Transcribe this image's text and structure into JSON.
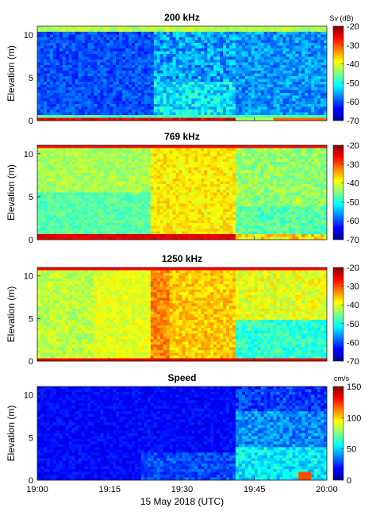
{
  "chart_data": [
    {
      "type": "heatmap",
      "title": "200 kHz",
      "ylabel": "Elevation (m)",
      "ylim": [
        0,
        11
      ],
      "yticks": [
        0,
        5,
        10
      ],
      "colorbar": {
        "label": "Sv (dB)",
        "range": [
          -70,
          -20
        ],
        "ticks": [
          -20,
          -30,
          -40,
          -50,
          -60,
          -70
        ]
      },
      "x": [
        "19:00",
        "19:15",
        "19:30",
        "19:45",
        "20:00"
      ],
      "xlabel_shown": false
    },
    {
      "type": "heatmap",
      "title": "769 kHz",
      "ylabel": "Elevation (m)",
      "ylim": [
        0,
        11
      ],
      "yticks": [
        0,
        5,
        10
      ],
      "colorbar": {
        "label": "",
        "range": [
          -70,
          -20
        ],
        "ticks": [
          -20,
          -30,
          -40,
          -50,
          -60,
          -70
        ]
      },
      "x": [
        "19:00",
        "19:15",
        "19:30",
        "19:45",
        "20:00"
      ],
      "xlabel_shown": false
    },
    {
      "type": "heatmap",
      "title": "1250 kHz",
      "ylabel": "Elevation (m)",
      "ylim": [
        0,
        11
      ],
      "yticks": [
        0,
        5,
        10
      ],
      "colorbar": {
        "label": "",
        "range": [
          -70,
          -20
        ],
        "ticks": [
          -20,
          -30,
          -40,
          -50,
          -60,
          -70
        ]
      },
      "x": [
        "19:00",
        "19:15",
        "19:30",
        "19:45",
        "20:00"
      ],
      "xlabel_shown": false
    },
    {
      "type": "heatmap",
      "title": "Speed",
      "ylabel": "Elevation (m)",
      "ylim": [
        0,
        11
      ],
      "yticks": [
        0,
        5,
        10
      ],
      "colorbar": {
        "label": "cm/s",
        "range": [
          0,
          150
        ],
        "ticks": [
          150,
          100,
          50,
          0
        ]
      },
      "x": [
        "19:00",
        "19:15",
        "19:30",
        "19:45",
        "20:00"
      ],
      "xlabel": "15 May 2018 (UTC)"
    }
  ]
}
